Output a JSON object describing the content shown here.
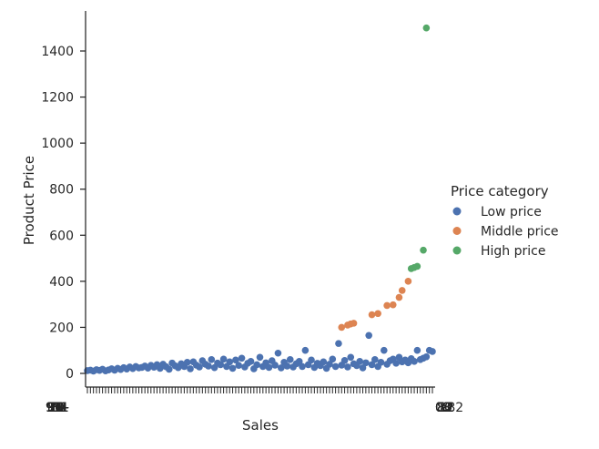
{
  "chart_data": {
    "type": "scatter",
    "xlabel": "Sales",
    "ylabel": "Product Price",
    "x_tick_labels_note": "categorical sales values; labels overlap into an unreadable band",
    "x_tick_labels_left": "91",
    "x_tick_labels_right": "0.82",
    "ylim": [
      -75,
      1570
    ],
    "yticks": [
      0,
      200,
      400,
      600,
      800,
      1000,
      1200,
      1400
    ],
    "ytick_labels": [
      "0",
      "200",
      "400",
      "600",
      "800",
      "1000",
      "1200",
      "1400"
    ],
    "legend": {
      "title": "Price category",
      "placement": "right",
      "entries": [
        "Low price",
        "Middle price",
        "High price"
      ]
    },
    "colors": {
      "Low price": "#4c72b0",
      "Middle price": "#dd8452",
      "High price": "#55a868"
    },
    "series": [
      {
        "name": "Low price",
        "points": [
          [
            0,
            12
          ],
          [
            1,
            14
          ],
          [
            2,
            10
          ],
          [
            3,
            16
          ],
          [
            4,
            13
          ],
          [
            5,
            18
          ],
          [
            6,
            11
          ],
          [
            7,
            15
          ],
          [
            8,
            20
          ],
          [
            9,
            14
          ],
          [
            10,
            22
          ],
          [
            11,
            17
          ],
          [
            12,
            25
          ],
          [
            13,
            19
          ],
          [
            14,
            28
          ],
          [
            15,
            21
          ],
          [
            16,
            30
          ],
          [
            17,
            24
          ],
          [
            18,
            26
          ],
          [
            19,
            32
          ],
          [
            20,
            23
          ],
          [
            21,
            35
          ],
          [
            22,
            27
          ],
          [
            23,
            38
          ],
          [
            24,
            22
          ],
          [
            25,
            40
          ],
          [
            26,
            29
          ],
          [
            27,
            18
          ],
          [
            28,
            45
          ],
          [
            29,
            33
          ],
          [
            30,
            25
          ],
          [
            31,
            42
          ],
          [
            32,
            30
          ],
          [
            33,
            48
          ],
          [
            34,
            20
          ],
          [
            35,
            50
          ],
          [
            36,
            36
          ],
          [
            37,
            28
          ],
          [
            38,
            55
          ],
          [
            39,
            40
          ],
          [
            40,
            32
          ],
          [
            41,
            60
          ],
          [
            42,
            25
          ],
          [
            43,
            45
          ],
          [
            44,
            38
          ],
          [
            45,
            62
          ],
          [
            46,
            30
          ],
          [
            47,
            50
          ],
          [
            48,
            22
          ],
          [
            49,
            58
          ],
          [
            50,
            35
          ],
          [
            51,
            66
          ],
          [
            52,
            28
          ],
          [
            53,
            44
          ],
          [
            54,
            52
          ],
          [
            55,
            20
          ],
          [
            56,
            38
          ],
          [
            57,
            70
          ],
          [
            58,
            30
          ],
          [
            59,
            46
          ],
          [
            60,
            26
          ],
          [
            61,
            55
          ],
          [
            62,
            36
          ],
          [
            63,
            88
          ],
          [
            64,
            24
          ],
          [
            65,
            48
          ],
          [
            66,
            32
          ],
          [
            67,
            60
          ],
          [
            68,
            28
          ],
          [
            69,
            42
          ],
          [
            70,
            52
          ],
          [
            71,
            30
          ],
          [
            72,
            100
          ],
          [
            73,
            38
          ],
          [
            74,
            58
          ],
          [
            75,
            26
          ],
          [
            76,
            44
          ],
          [
            77,
            34
          ],
          [
            78,
            50
          ],
          [
            79,
            22
          ],
          [
            80,
            40
          ],
          [
            81,
            62
          ],
          [
            82,
            30
          ],
          [
            83,
            130
          ],
          [
            84,
            36
          ],
          [
            85,
            56
          ],
          [
            86,
            28
          ],
          [
            87,
            70
          ],
          [
            88,
            42
          ],
          [
            89,
            34
          ],
          [
            90,
            52
          ],
          [
            91,
            24
          ],
          [
            92,
            46
          ],
          [
            93,
            165
          ],
          [
            94,
            38
          ],
          [
            95,
            60
          ],
          [
            96,
            30
          ],
          [
            97,
            48
          ],
          [
            98,
            100
          ],
          [
            99,
            40
          ],
          [
            100,
            55
          ],
          [
            101,
            62
          ],
          [
            102,
            44
          ],
          [
            103,
            70
          ],
          [
            104,
            50
          ],
          [
            105,
            58
          ],
          [
            106,
            46
          ],
          [
            107,
            64
          ],
          [
            108,
            52
          ],
          [
            109,
            100
          ],
          [
            110,
            60
          ],
          [
            111,
            66
          ],
          [
            112,
            72
          ],
          [
            113,
            100
          ],
          [
            114,
            95
          ]
        ]
      },
      {
        "name": "Middle price",
        "points": [
          [
            84,
            200
          ],
          [
            86,
            210
          ],
          [
            87,
            215
          ],
          [
            88,
            218
          ],
          [
            94,
            255
          ],
          [
            96,
            260
          ],
          [
            99,
            295
          ],
          [
            101,
            298
          ],
          [
            103,
            330
          ],
          [
            104,
            360
          ],
          [
            106,
            400
          ]
        ]
      },
      {
        "name": "High price",
        "points": [
          [
            107,
            455
          ],
          [
            108,
            460
          ],
          [
            109,
            465
          ],
          [
            111,
            535
          ],
          [
            112,
            1500
          ]
        ]
      }
    ]
  }
}
